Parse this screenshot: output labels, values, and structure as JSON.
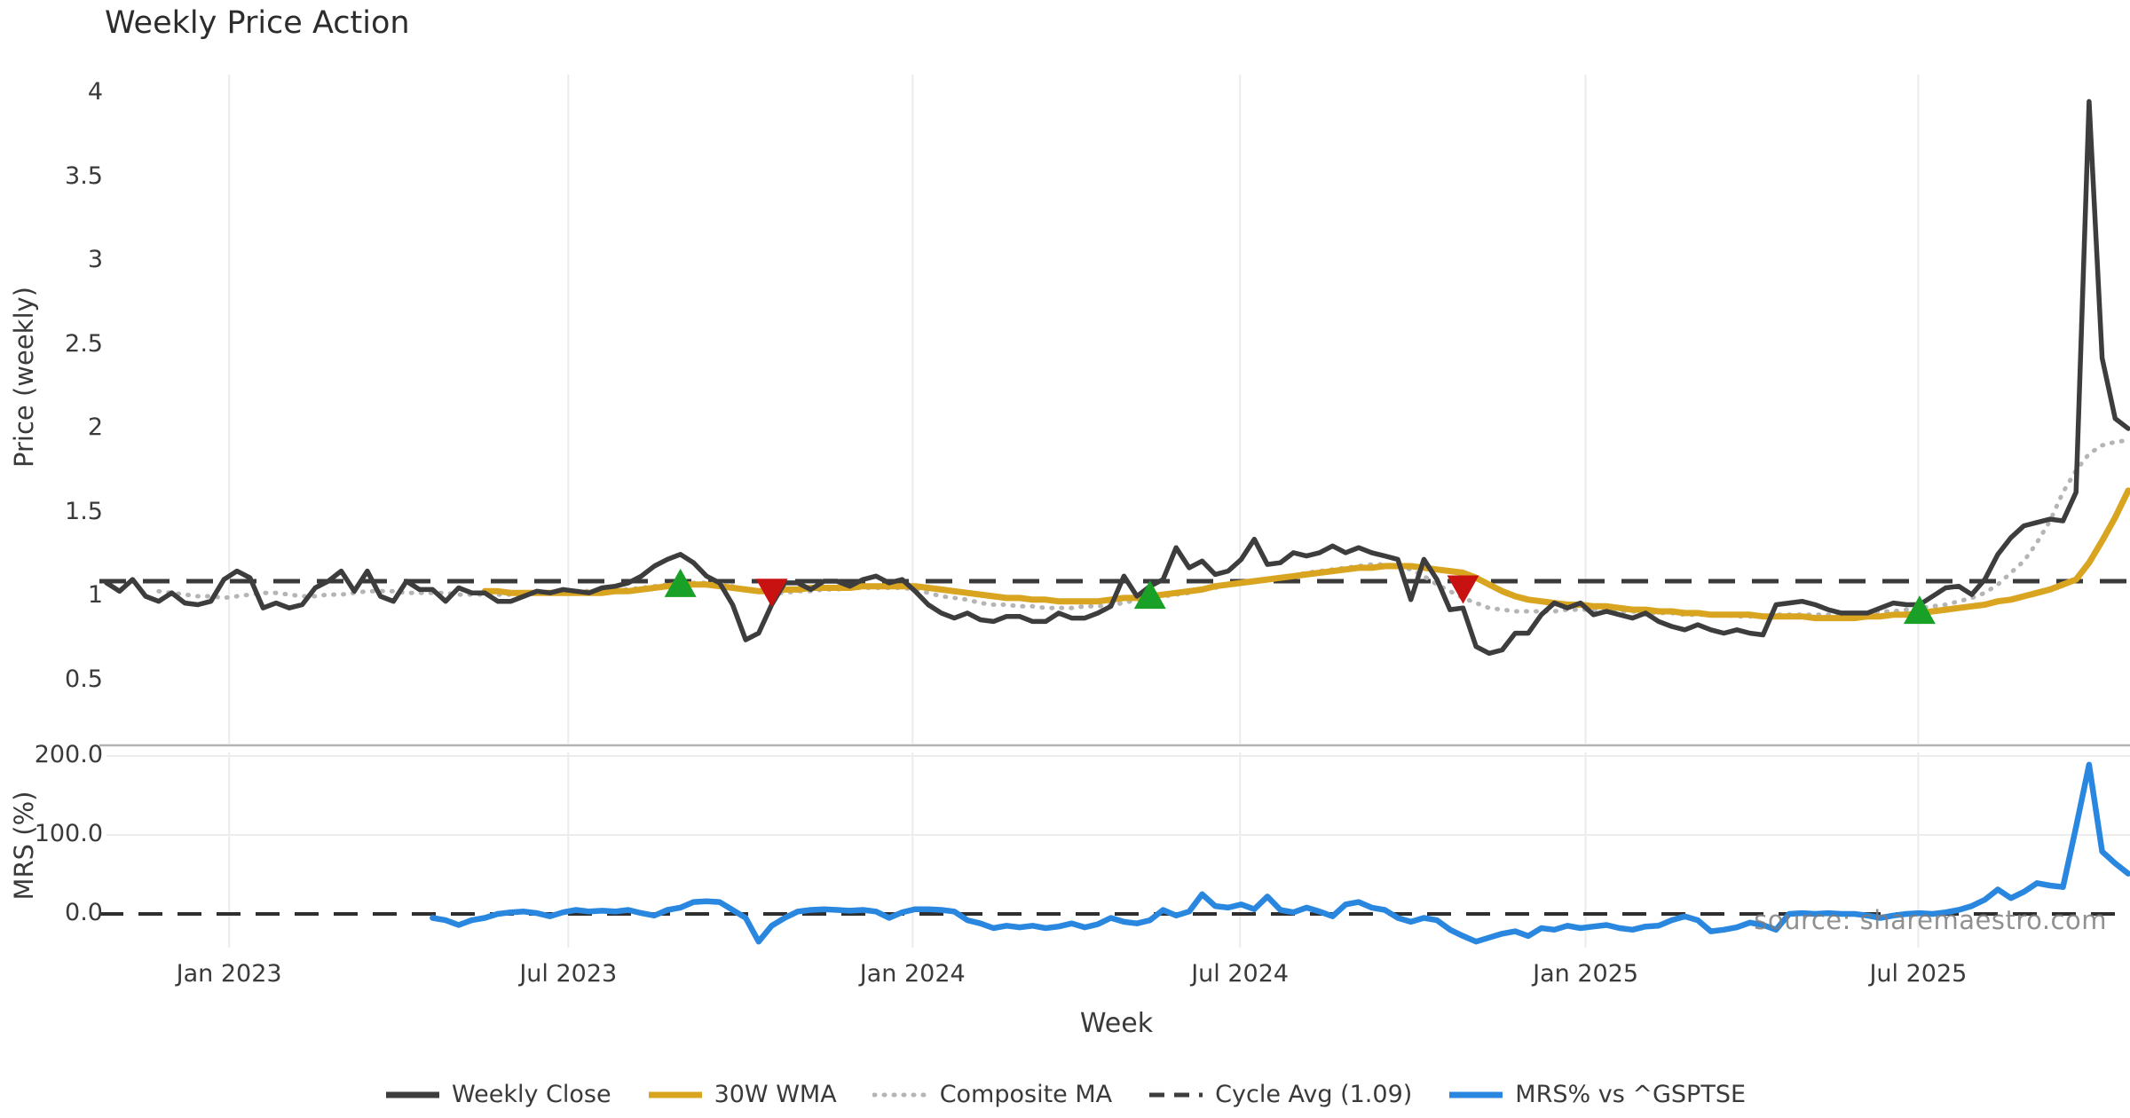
{
  "title": "Weekly Price Action",
  "source_watermark": "source: sharemaestro.com",
  "colors": {
    "weekly_close": "#3d3d3d",
    "wma": "#d9a41f",
    "composite": "#b5b5b5",
    "cycle_avg": "#3a3a3a",
    "mrs": "#2a87e0",
    "buy": "#19a127",
    "sell": "#c81212",
    "grid": "#ebebeb",
    "grid_soft": "#ececec",
    "separator": "#9a9a9a",
    "text": "#3a3a3a",
    "watermark": "#7d7d7d"
  },
  "chart_data": {
    "type": "line",
    "title": "Weekly Price Action",
    "x_axis": {
      "label": "Week",
      "ticks": [
        {
          "label": "Jan 2023",
          "week": 9.4
        },
        {
          "label": "Jul 2023",
          "week": 35.4
        },
        {
          "label": "Jan 2024",
          "week": 61.8
        },
        {
          "label": "Jul 2024",
          "week": 86.9
        },
        {
          "label": "Jan 2025",
          "week": 113.4
        },
        {
          "label": "Jul 2025",
          "week": 138.9
        }
      ],
      "range_weeks": [
        0,
        155
      ]
    },
    "panels": [
      {
        "name": "price",
        "y_label": "Price (weekly)",
        "y_ticks": [
          {
            "label": "4",
            "value": 4
          },
          {
            "label": "3.5",
            "value": 3.5
          },
          {
            "label": "3",
            "value": 3
          },
          {
            "label": "2.5",
            "value": 2.5
          },
          {
            "label": "2",
            "value": 2
          },
          {
            "label": "1.5",
            "value": 1.5
          },
          {
            "label": "1",
            "value": 1
          },
          {
            "label": "0.5",
            "value": 0.5
          }
        ],
        "ylim": [
          0.35,
          4.13
        ],
        "cycle_avg": 1.09,
        "grid": "vertical-only"
      },
      {
        "name": "mrs",
        "y_label": "MRS (%)",
        "y_ticks": [
          {
            "label": "200.0",
            "value": 200
          },
          {
            "label": "100.0",
            "value": 100
          },
          {
            "label": "0.0",
            "value": 0
          }
        ],
        "ylim": [
          -60,
          210
        ],
        "zero_line": 0,
        "grid": "horizontal-and-vertical"
      }
    ],
    "series": [
      {
        "name": "Weekly Close",
        "panel": "price",
        "style": "solid",
        "values": [
          1.08,
          1.03,
          1.1,
          1.0,
          0.97,
          1.02,
          0.96,
          0.95,
          0.97,
          1.1,
          1.15,
          1.11,
          0.93,
          0.96,
          0.93,
          0.95,
          1.05,
          1.09,
          1.15,
          1.03,
          1.15,
          1.0,
          0.97,
          1.09,
          1.04,
          1.04,
          0.97,
          1.05,
          1.02,
          1.02,
          0.97,
          0.97,
          1.0,
          1.03,
          1.02,
          1.04,
          1.03,
          1.02,
          1.05,
          1.06,
          1.08,
          1.12,
          1.18,
          1.22,
          1.25,
          1.2,
          1.12,
          1.08,
          0.95,
          0.74,
          0.78,
          0.95,
          1.08,
          1.08,
          1.04,
          1.09,
          1.09,
          1.06,
          1.1,
          1.12,
          1.08,
          1.1,
          1.03,
          0.95,
          0.9,
          0.87,
          0.9,
          0.86,
          0.85,
          0.88,
          0.88,
          0.85,
          0.85,
          0.9,
          0.87,
          0.87,
          0.9,
          0.94,
          1.12,
          1.0,
          1.06,
          1.1,
          1.29,
          1.17,
          1.21,
          1.13,
          1.15,
          1.22,
          1.34,
          1.19,
          1.2,
          1.26,
          1.24,
          1.26,
          1.3,
          1.26,
          1.29,
          1.26,
          1.24,
          1.22,
          0.98,
          1.22,
          1.1,
          0.92,
          0.93,
          0.7,
          0.66,
          0.68,
          0.78,
          0.78,
          0.89,
          0.96,
          0.93,
          0.96,
          0.89,
          0.91,
          0.89,
          0.87,
          0.9,
          0.85,
          0.82,
          0.8,
          0.83,
          0.8,
          0.78,
          0.8,
          0.78,
          0.77,
          0.95,
          0.96,
          0.97,
          0.95,
          0.92,
          0.9,
          0.9,
          0.9,
          0.93,
          0.96,
          0.95,
          0.95,
          1.0,
          1.05,
          1.06,
          1.01,
          1.1,
          1.25,
          1.35,
          1.42,
          1.44,
          1.46,
          1.45,
          1.62,
          3.95,
          2.42,
          2.06,
          2.0
        ]
      },
      {
        "name": "30W WMA",
        "panel": "price",
        "style": "solid",
        "values": [
          null,
          null,
          null,
          null,
          null,
          null,
          null,
          null,
          null,
          null,
          null,
          null,
          null,
          null,
          null,
          null,
          null,
          null,
          null,
          null,
          null,
          null,
          null,
          null,
          null,
          null,
          null,
          null,
          null,
          1.03,
          1.03,
          1.02,
          1.02,
          1.02,
          1.02,
          1.02,
          1.02,
          1.02,
          1.02,
          1.03,
          1.03,
          1.04,
          1.05,
          1.06,
          1.07,
          1.07,
          1.07,
          1.06,
          1.05,
          1.04,
          1.03,
          1.03,
          1.04,
          1.04,
          1.05,
          1.05,
          1.05,
          1.05,
          1.06,
          1.06,
          1.06,
          1.06,
          1.06,
          1.05,
          1.04,
          1.03,
          1.02,
          1.01,
          1.0,
          0.99,
          0.99,
          0.98,
          0.98,
          0.97,
          0.97,
          0.97,
          0.97,
          0.98,
          0.99,
          0.99,
          1.0,
          1.01,
          1.02,
          1.03,
          1.04,
          1.06,
          1.07,
          1.08,
          1.09,
          1.1,
          1.11,
          1.12,
          1.13,
          1.14,
          1.15,
          1.16,
          1.17,
          1.17,
          1.18,
          1.18,
          1.18,
          1.17,
          1.16,
          1.15,
          1.14,
          1.11,
          1.07,
          1.03,
          1.0,
          0.98,
          0.97,
          0.96,
          0.95,
          0.95,
          0.94,
          0.94,
          0.93,
          0.92,
          0.92,
          0.91,
          0.91,
          0.9,
          0.9,
          0.89,
          0.89,
          0.89,
          0.89,
          0.88,
          0.88,
          0.88,
          0.88,
          0.87,
          0.87,
          0.87,
          0.87,
          0.88,
          0.88,
          0.89,
          0.89,
          0.9,
          0.91,
          0.92,
          0.93,
          0.94,
          0.95,
          0.97,
          0.98,
          1.0,
          1.02,
          1.04,
          1.07,
          1.1,
          1.2,
          1.33,
          1.47,
          1.63
        ]
      },
      {
        "name": "Composite MA",
        "panel": "price",
        "style": "dotted",
        "values": [
          null,
          null,
          null,
          null,
          1.03,
          1.02,
          1.01,
          1.0,
          1.0,
          0.99,
          1.0,
          1.01,
          1.02,
          1.02,
          1.01,
          1.0,
          1.0,
          1.01,
          1.01,
          1.02,
          1.03,
          1.03,
          1.03,
          1.02,
          1.02,
          1.02,
          1.02,
          1.01,
          1.01,
          1.01,
          1.01,
          1.01,
          1.01,
          1.02,
          1.02,
          1.02,
          1.03,
          1.03,
          1.03,
          1.04,
          1.04,
          1.05,
          1.06,
          1.07,
          1.08,
          1.08,
          1.08,
          1.07,
          1.06,
          1.04,
          1.03,
          1.02,
          1.02,
          1.03,
          1.03,
          1.04,
          1.04,
          1.05,
          1.05,
          1.05,
          1.05,
          1.05,
          1.04,
          1.02,
          1.0,
          0.99,
          0.98,
          0.96,
          0.95,
          0.95,
          0.94,
          0.94,
          0.93,
          0.93,
          0.93,
          0.94,
          0.94,
          0.95,
          0.96,
          0.98,
          0.99,
          1.0,
          1.01,
          1.02,
          1.04,
          1.05,
          1.07,
          1.08,
          1.09,
          1.1,
          1.11,
          1.12,
          1.14,
          1.15,
          1.16,
          1.17,
          1.18,
          1.19,
          1.19,
          1.18,
          1.16,
          1.12,
          1.07,
          1.03,
          0.99,
          0.96,
          0.93,
          0.92,
          0.91,
          0.91,
          0.91,
          0.91,
          0.92,
          0.92,
          0.92,
          0.92,
          0.91,
          0.91,
          0.9,
          0.9,
          0.9,
          0.89,
          0.89,
          0.89,
          0.89,
          0.88,
          0.88,
          0.88,
          0.89,
          0.89,
          0.89,
          0.89,
          0.89,
          0.89,
          0.9,
          0.9,
          0.91,
          0.91,
          0.92,
          0.93,
          0.94,
          0.95,
          0.97,
          0.99,
          1.02,
          1.07,
          1.14,
          1.21,
          1.32,
          1.45,
          1.62,
          1.75,
          1.85,
          1.9,
          1.92,
          1.93
        ]
      },
      {
        "name": "MRS% vs ^GSPTSE",
        "panel": "mrs",
        "style": "solid",
        "values": [
          null,
          null,
          null,
          null,
          null,
          null,
          null,
          null,
          null,
          null,
          null,
          null,
          null,
          null,
          null,
          null,
          null,
          null,
          null,
          null,
          null,
          null,
          null,
          null,
          null,
          -5,
          -8,
          -14,
          -8,
          -5,
          0,
          2,
          3,
          1,
          -3,
          2,
          5,
          3,
          4,
          3,
          5,
          1,
          -2,
          5,
          8,
          15,
          16,
          15,
          5,
          -5,
          -35,
          -15,
          -5,
          3,
          5,
          6,
          5,
          4,
          5,
          3,
          -5,
          2,
          6,
          6,
          5,
          3,
          -8,
          -12,
          -18,
          -15,
          -17,
          -15,
          -18,
          -16,
          -12,
          -17,
          -13,
          -5,
          -10,
          -12,
          -8,
          5,
          -2,
          3,
          25,
          10,
          8,
          12,
          6,
          22,
          5,
          2,
          8,
          3,
          -3,
          12,
          15,
          8,
          5,
          -5,
          -10,
          -5,
          -8,
          -20,
          -28,
          -35,
          -30,
          -25,
          -22,
          -28,
          -18,
          -20,
          -15,
          -18,
          -16,
          -14,
          -18,
          -20,
          -16,
          -15,
          -8,
          -3,
          -8,
          -22,
          -20,
          -17,
          -11,
          -14,
          -20,
          0,
          1,
          0,
          1,
          0,
          0,
          -2,
          -5,
          -2,
          0,
          1,
          0,
          2,
          5,
          10,
          18,
          31,
          20,
          28,
          39,
          36,
          34,
          110,
          189,
          79,
          64,
          51
        ]
      }
    ],
    "markers": {
      "buy_signals": [
        {
          "week": 44,
          "value": 1.08
        },
        {
          "week": 80,
          "value": 1.01
        },
        {
          "week": 139,
          "value": 0.92
        }
      ],
      "sell_signals": [
        {
          "week": 51,
          "value": 1.02
        },
        {
          "week": 104,
          "value": 1.04
        }
      ]
    },
    "legend": [
      {
        "label": "Weekly Close",
        "color": "#3d3d3d",
        "style": "solid"
      },
      {
        "label": "30W WMA",
        "color": "#d9a41f",
        "style": "solid"
      },
      {
        "label": "Composite MA",
        "color": "#b5b5b5",
        "style": "dotted"
      },
      {
        "label": "Cycle Avg (1.09)",
        "color": "#3d3d3d",
        "style": "dashed"
      },
      {
        "label": "MRS% vs ^GSPTSE",
        "color": "#2a87e0",
        "style": "solid"
      }
    ],
    "legend_position": "bottom-center"
  }
}
